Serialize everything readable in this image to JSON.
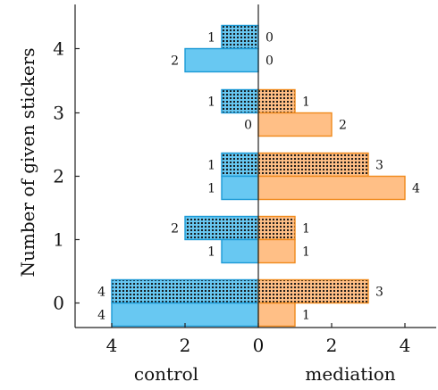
{
  "chart_data": {
    "type": "bar",
    "orientation": "horizontal-diverging",
    "ylabel": "Number of given stickers",
    "left_group_label": "control",
    "right_group_label": "mediation",
    "categories": [
      "0",
      "1",
      "2",
      "3",
      "4"
    ],
    "x_ticks": [
      "4",
      "2",
      "0",
      "2",
      "4"
    ],
    "xlim": [
      -4.8,
      4.8
    ],
    "series": [
      {
        "group": "control",
        "pattern": "dotted",
        "values": [
          4,
          2,
          1,
          1,
          1
        ],
        "labels": [
          "4",
          "2",
          "1",
          "1",
          "1"
        ]
      },
      {
        "group": "control",
        "pattern": "solid",
        "values": [
          4,
          1,
          1,
          0,
          2
        ],
        "labels": [
          "4",
          "1",
          "1",
          "0",
          "2"
        ]
      },
      {
        "group": "mediation",
        "pattern": "dotted",
        "values": [
          3,
          1,
          3,
          1,
          0
        ],
        "labels": [
          "3",
          "1",
          "3",
          "1",
          "0"
        ]
      },
      {
        "group": "mediation",
        "pattern": "solid",
        "values": [
          1,
          1,
          4,
          2,
          0
        ],
        "labels": [
          "1",
          "1",
          "4",
          "2",
          "0"
        ]
      }
    ],
    "colors": {
      "control_fill": "#68C8F2",
      "control_stroke": "#1C9AD6",
      "mediation_fill": "#FFBF86",
      "mediation_stroke": "#F08A1C",
      "dots": "#111111"
    },
    "grid": false
  }
}
